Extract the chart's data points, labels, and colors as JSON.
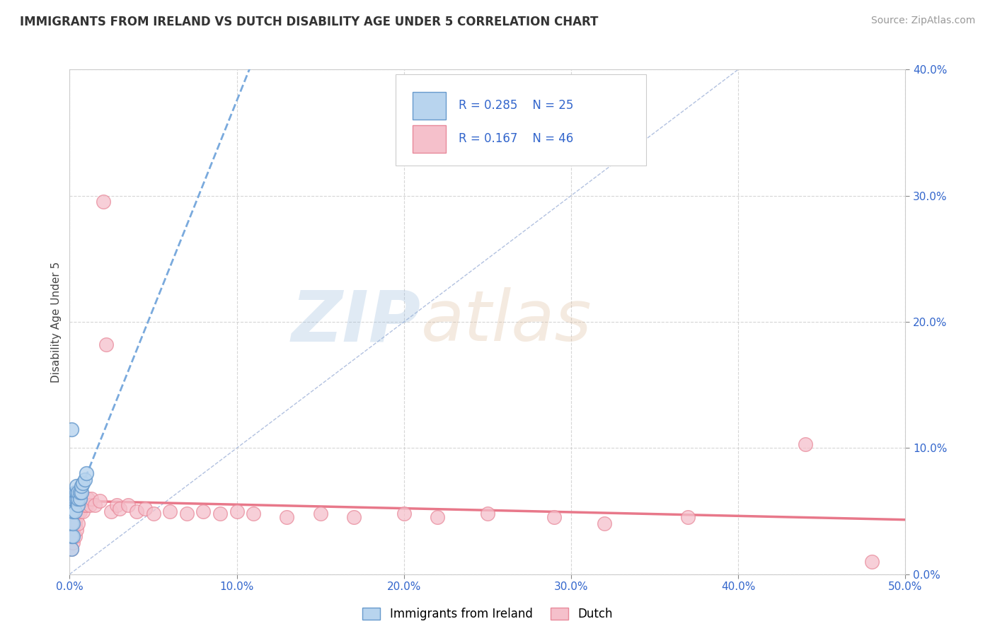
{
  "title": "IMMIGRANTS FROM IRELAND VS DUTCH DISABILITY AGE UNDER 5 CORRELATION CHART",
  "source": "Source: ZipAtlas.com",
  "ylabel": "Disability Age Under 5",
  "xlim": [
    0.0,
    0.5
  ],
  "ylim": [
    0.0,
    0.4
  ],
  "xticks": [
    0.0,
    0.1,
    0.2,
    0.3,
    0.4,
    0.5
  ],
  "yticks": [
    0.0,
    0.1,
    0.2,
    0.3,
    0.4
  ],
  "xtick_labels": [
    "0.0%",
    "10.0%",
    "20.0%",
    "30.0%",
    "40.0%",
    "50.0%"
  ],
  "ytick_labels": [
    "0.0%",
    "10.0%",
    "20.0%",
    "30.0%",
    "40.0%"
  ],
  "legend_entries": [
    "Immigrants from Ireland",
    "Dutch"
  ],
  "legend_R": [
    0.285,
    0.167
  ],
  "legend_N": [
    25,
    46
  ],
  "ireland_color": "#b8d4ee",
  "dutch_color": "#f5c0cb",
  "ireland_edge": "#6699cc",
  "dutch_edge": "#e8899a",
  "trend_ireland_color": "#7aaadd",
  "trend_dutch_color": "#e8788a",
  "diagonal_color": "#aabbdd",
  "watermark_zip_color": "#99bbdd",
  "watermark_atlas_color": "#ddbb99",
  "ireland_x": [
    0.001,
    0.001,
    0.001,
    0.002,
    0.002,
    0.002,
    0.002,
    0.003,
    0.003,
    0.003,
    0.004,
    0.004,
    0.005,
    0.005,
    0.005,
    0.006,
    0.006,
    0.007,
    0.008,
    0.009,
    0.01,
    0.011,
    0.012,
    0.015,
    0.0
  ],
  "ireland_y": [
    0.005,
    0.01,
    0.02,
    0.01,
    0.025,
    0.03,
    0.04,
    0.045,
    0.055,
    0.06,
    0.06,
    0.065,
    0.05,
    0.06,
    0.065,
    0.06,
    0.065,
    0.07,
    0.075,
    0.08,
    0.082,
    0.085,
    0.088,
    0.09,
    0.115
  ],
  "dutch_x": [
    0.001,
    0.001,
    0.002,
    0.002,
    0.003,
    0.003,
    0.004,
    0.004,
    0.005,
    0.005,
    0.006,
    0.007,
    0.008,
    0.009,
    0.01,
    0.011,
    0.012,
    0.013,
    0.015,
    0.016,
    0.018,
    0.02,
    0.022,
    0.025,
    0.028,
    0.03,
    0.035,
    0.04,
    0.045,
    0.05,
    0.06,
    0.07,
    0.08,
    0.09,
    0.1,
    0.12,
    0.14,
    0.16,
    0.18,
    0.2,
    0.22,
    0.25,
    0.28,
    0.32,
    0.44,
    0.48
  ],
  "dutch_y": [
    0.01,
    0.02,
    0.025,
    0.035,
    0.03,
    0.04,
    0.035,
    0.045,
    0.04,
    0.05,
    0.05,
    0.055,
    0.055,
    0.06,
    0.06,
    0.065,
    0.06,
    0.065,
    0.055,
    0.06,
    0.06,
    0.175,
    0.06,
    0.055,
    0.06,
    0.058,
    0.062,
    0.06,
    0.058,
    0.06,
    0.058,
    0.06,
    0.055,
    0.058,
    0.06,
    0.062,
    0.058,
    0.055,
    0.058,
    0.06,
    0.055,
    0.058,
    0.06,
    0.055,
    0.103,
    0.005
  ]
}
